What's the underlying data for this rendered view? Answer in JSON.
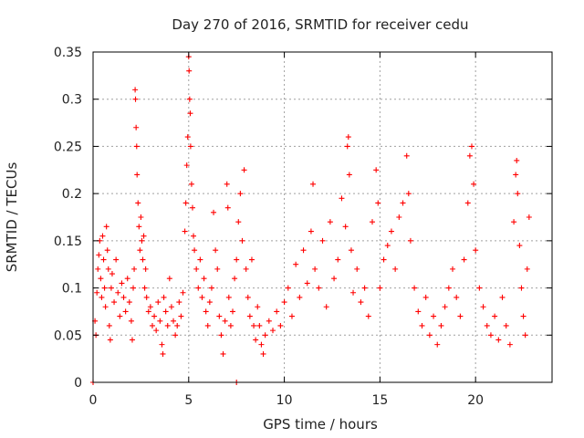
{
  "chart_data": {
    "type": "scatter",
    "title": "Day 270 of 2016, SRMTID for receiver cedu",
    "xlabel": "GPS time / hours",
    "ylabel": "SRMTID / TECUs",
    "xlim": [
      0,
      24
    ],
    "ylim": [
      0,
      0.35
    ],
    "xticks": [
      0,
      5,
      10,
      15,
      20
    ],
    "xtick_labels": [
      "0",
      "5",
      "10",
      "15",
      "20"
    ],
    "yticks": [
      0,
      0.05,
      0.1,
      0.15,
      0.2,
      0.25,
      0.3,
      0.35
    ],
    "ytick_labels": [
      "0",
      "0.05",
      "0.1",
      "0.15",
      "0.2",
      "0.25",
      "0.3",
      "0.35"
    ],
    "grid": true,
    "marker": "+",
    "color": "#ff0000",
    "series": [
      {
        "name": "SRMTID",
        "points": [
          [
            0.0,
            0.0
          ],
          [
            7.5,
            0.0
          ],
          [
            0.1,
            0.065
          ],
          [
            0.15,
            0.05
          ],
          [
            0.2,
            0.095
          ],
          [
            0.25,
            0.12
          ],
          [
            0.3,
            0.135
          ],
          [
            0.35,
            0.15
          ],
          [
            0.4,
            0.11
          ],
          [
            0.45,
            0.09
          ],
          [
            0.5,
            0.155
          ],
          [
            0.55,
            0.13
          ],
          [
            0.6,
            0.1
          ],
          [
            0.65,
            0.08
          ],
          [
            0.7,
            0.165
          ],
          [
            0.75,
            0.14
          ],
          [
            0.8,
            0.12
          ],
          [
            0.85,
            0.06
          ],
          [
            0.9,
            0.045
          ],
          [
            0.95,
            0.1
          ],
          [
            1.0,
            0.115
          ],
          [
            1.1,
            0.085
          ],
          [
            1.2,
            0.13
          ],
          [
            1.3,
            0.095
          ],
          [
            1.4,
            0.07
          ],
          [
            1.5,
            0.105
          ],
          [
            1.6,
            0.09
          ],
          [
            1.7,
            0.075
          ],
          [
            1.8,
            0.11
          ],
          [
            1.9,
            0.085
          ],
          [
            2.0,
            0.065
          ],
          [
            2.05,
            0.045
          ],
          [
            2.1,
            0.1
          ],
          [
            2.15,
            0.12
          ],
          [
            2.2,
            0.31
          ],
          [
            2.22,
            0.3
          ],
          [
            2.25,
            0.27
          ],
          [
            2.28,
            0.25
          ],
          [
            2.3,
            0.22
          ],
          [
            2.35,
            0.19
          ],
          [
            2.4,
            0.165
          ],
          [
            2.45,
            0.14
          ],
          [
            2.5,
            0.175
          ],
          [
            2.55,
            0.15
          ],
          [
            2.6,
            0.13
          ],
          [
            2.65,
            0.155
          ],
          [
            2.7,
            0.1
          ],
          [
            2.75,
            0.12
          ],
          [
            2.8,
            0.09
          ],
          [
            2.9,
            0.075
          ],
          [
            3.0,
            0.08
          ],
          [
            3.1,
            0.06
          ],
          [
            3.2,
            0.07
          ],
          [
            3.3,
            0.055
          ],
          [
            3.4,
            0.085
          ],
          [
            3.5,
            0.065
          ],
          [
            3.6,
            0.04
          ],
          [
            3.65,
            0.03
          ],
          [
            3.7,
            0.09
          ],
          [
            3.8,
            0.075
          ],
          [
            3.9,
            0.06
          ],
          [
            4.0,
            0.11
          ],
          [
            4.1,
            0.08
          ],
          [
            4.2,
            0.065
          ],
          [
            4.3,
            0.05
          ],
          [
            4.4,
            0.06
          ],
          [
            4.5,
            0.085
          ],
          [
            4.6,
            0.07
          ],
          [
            4.7,
            0.095
          ],
          [
            4.8,
            0.16
          ],
          [
            4.85,
            0.19
          ],
          [
            4.9,
            0.23
          ],
          [
            4.95,
            0.26
          ],
          [
            5.0,
            0.345
          ],
          [
            5.02,
            0.33
          ],
          [
            5.05,
            0.3
          ],
          [
            5.08,
            0.285
          ],
          [
            5.1,
            0.25
          ],
          [
            5.15,
            0.21
          ],
          [
            5.2,
            0.185
          ],
          [
            5.25,
            0.155
          ],
          [
            5.3,
            0.14
          ],
          [
            5.4,
            0.12
          ],
          [
            5.5,
            0.1
          ],
          [
            5.6,
            0.13
          ],
          [
            5.7,
            0.09
          ],
          [
            5.8,
            0.11
          ],
          [
            5.9,
            0.075
          ],
          [
            6.0,
            0.06
          ],
          [
            6.1,
            0.085
          ],
          [
            6.2,
            0.1
          ],
          [
            6.3,
            0.18
          ],
          [
            6.4,
            0.14
          ],
          [
            6.5,
            0.12
          ],
          [
            6.6,
            0.07
          ],
          [
            6.7,
            0.05
          ],
          [
            6.8,
            0.03
          ],
          [
            6.9,
            0.065
          ],
          [
            7.0,
            0.21
          ],
          [
            7.05,
            0.185
          ],
          [
            7.1,
            0.09
          ],
          [
            7.2,
            0.06
          ],
          [
            7.3,
            0.075
          ],
          [
            7.4,
            0.11
          ],
          [
            7.5,
            0.13
          ],
          [
            7.6,
            0.17
          ],
          [
            7.7,
            0.2
          ],
          [
            7.8,
            0.15
          ],
          [
            7.9,
            0.225
          ],
          [
            8.0,
            0.12
          ],
          [
            8.1,
            0.09
          ],
          [
            8.2,
            0.07
          ],
          [
            8.3,
            0.13
          ],
          [
            8.4,
            0.06
          ],
          [
            8.5,
            0.045
          ],
          [
            8.6,
            0.08
          ],
          [
            8.7,
            0.06
          ],
          [
            8.8,
            0.04
          ],
          [
            8.9,
            0.03
          ],
          [
            9.0,
            0.05
          ],
          [
            9.2,
            0.065
          ],
          [
            9.4,
            0.055
          ],
          [
            9.6,
            0.075
          ],
          [
            9.8,
            0.06
          ],
          [
            10.0,
            0.085
          ],
          [
            10.2,
            0.1
          ],
          [
            10.4,
            0.07
          ],
          [
            10.6,
            0.125
          ],
          [
            10.8,
            0.09
          ],
          [
            11.0,
            0.14
          ],
          [
            11.2,
            0.105
          ],
          [
            11.4,
            0.16
          ],
          [
            11.5,
            0.21
          ],
          [
            11.6,
            0.12
          ],
          [
            11.8,
            0.1
          ],
          [
            12.0,
            0.15
          ],
          [
            12.2,
            0.08
          ],
          [
            12.4,
            0.17
          ],
          [
            12.6,
            0.11
          ],
          [
            12.8,
            0.13
          ],
          [
            13.0,
            0.195
          ],
          [
            13.2,
            0.165
          ],
          [
            13.3,
            0.25
          ],
          [
            13.35,
            0.26
          ],
          [
            13.4,
            0.22
          ],
          [
            13.5,
            0.14
          ],
          [
            13.6,
            0.095
          ],
          [
            13.8,
            0.12
          ],
          [
            14.0,
            0.085
          ],
          [
            14.2,
            0.1
          ],
          [
            14.4,
            0.07
          ],
          [
            14.6,
            0.17
          ],
          [
            14.8,
            0.225
          ],
          [
            14.9,
            0.19
          ],
          [
            15.0,
            0.1
          ],
          [
            15.2,
            0.13
          ],
          [
            15.4,
            0.145
          ],
          [
            15.6,
            0.16
          ],
          [
            15.8,
            0.12
          ],
          [
            16.0,
            0.175
          ],
          [
            16.2,
            0.19
          ],
          [
            16.4,
            0.24
          ],
          [
            16.5,
            0.2
          ],
          [
            16.6,
            0.15
          ],
          [
            16.8,
            0.1
          ],
          [
            17.0,
            0.075
          ],
          [
            17.2,
            0.06
          ],
          [
            17.4,
            0.09
          ],
          [
            17.6,
            0.05
          ],
          [
            17.8,
            0.07
          ],
          [
            18.0,
            0.04
          ],
          [
            18.2,
            0.06
          ],
          [
            18.4,
            0.08
          ],
          [
            18.6,
            0.1
          ],
          [
            18.8,
            0.12
          ],
          [
            19.0,
            0.09
          ],
          [
            19.2,
            0.07
          ],
          [
            19.4,
            0.13
          ],
          [
            19.6,
            0.19
          ],
          [
            19.7,
            0.24
          ],
          [
            19.8,
            0.25
          ],
          [
            19.9,
            0.21
          ],
          [
            20.0,
            0.14
          ],
          [
            20.2,
            0.1
          ],
          [
            20.4,
            0.08
          ],
          [
            20.6,
            0.06
          ],
          [
            20.8,
            0.05
          ],
          [
            21.0,
            0.07
          ],
          [
            21.2,
            0.045
          ],
          [
            21.4,
            0.09
          ],
          [
            21.6,
            0.06
          ],
          [
            21.8,
            0.04
          ],
          [
            22.0,
            0.17
          ],
          [
            22.1,
            0.22
          ],
          [
            22.15,
            0.235
          ],
          [
            22.2,
            0.2
          ],
          [
            22.3,
            0.145
          ],
          [
            22.4,
            0.1
          ],
          [
            22.5,
            0.07
          ],
          [
            22.6,
            0.05
          ],
          [
            22.7,
            0.12
          ],
          [
            22.8,
            0.175
          ]
        ]
      }
    ]
  }
}
